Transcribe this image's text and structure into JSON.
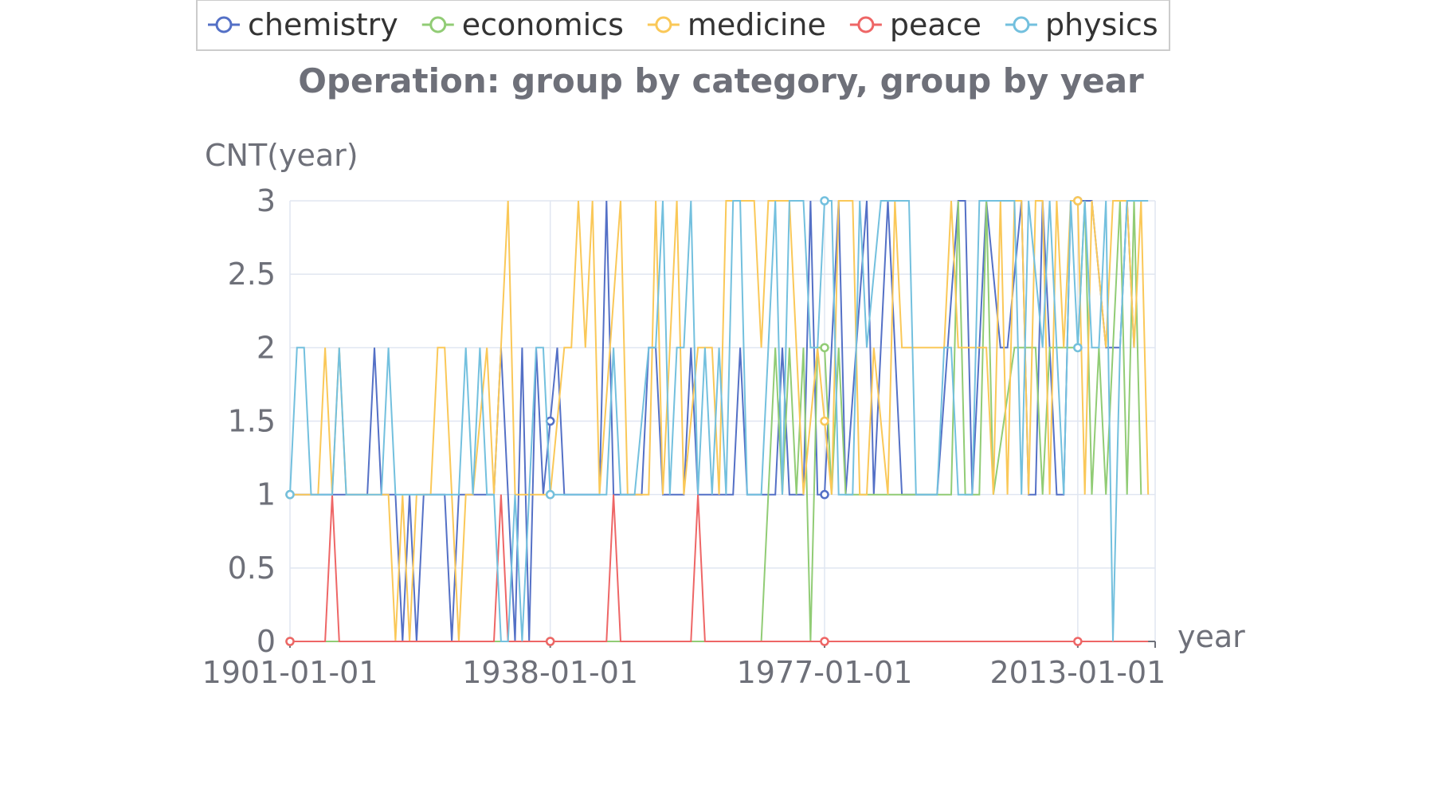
{
  "chart_data": {
    "type": "line",
    "title": "Operation: group by category, group by year",
    "xlabel": "year",
    "ylabel": "CNT(year)",
    "x_ticks": [
      "1901-01-01",
      "1938-01-01",
      "1977-01-01",
      "2013-01-01"
    ],
    "x_range": [
      1901,
      2024
    ],
    "ylim": [
      0,
      3
    ],
    "y_ticks": [
      "0",
      "0.5",
      "1",
      "1.5",
      "2",
      "2.5",
      "3"
    ],
    "grid": true,
    "legend_position": "top-center",
    "colors": {
      "chemistry": "#5470c6",
      "economics": "#91cc75",
      "medicine": "#fac858",
      "peace": "#ee6666",
      "physics": "#73c0de"
    },
    "series": [
      {
        "name": "chemistry",
        "color": "#5470c6",
        "points": [
          [
            1901,
            1
          ],
          [
            1910,
            1
          ],
          [
            1912,
            1
          ],
          [
            1913,
            2
          ],
          [
            1914,
            1
          ],
          [
            1916,
            1
          ],
          [
            1917,
            0
          ],
          [
            1918,
            1
          ],
          [
            1919,
            0
          ],
          [
            1920,
            1
          ],
          [
            1923,
            1
          ],
          [
            1924,
            0
          ],
          [
            1925,
            1
          ],
          [
            1930,
            1
          ],
          [
            1931,
            2
          ],
          [
            1932,
            1
          ],
          [
            1933,
            0
          ],
          [
            1934,
            2
          ],
          [
            1935,
            0
          ],
          [
            1936,
            2
          ],
          [
            1937,
            1
          ],
          [
            1939,
            2
          ],
          [
            1940,
            1
          ],
          [
            1945,
            1
          ],
          [
            1946,
            3
          ],
          [
            1947,
            1
          ],
          [
            1951,
            1
          ],
          [
            1952,
            2
          ],
          [
            1953,
            2
          ],
          [
            1954,
            1
          ],
          [
            1957,
            1
          ],
          [
            1958,
            2
          ],
          [
            1959,
            1
          ],
          [
            1962,
            1
          ],
          [
            1963,
            1
          ],
          [
            1964,
            1
          ],
          [
            1965,
            2
          ],
          [
            1966,
            1
          ],
          [
            1968,
            1
          ],
          [
            1969,
            1
          ],
          [
            1970,
            1
          ],
          [
            1971,
            2
          ],
          [
            1972,
            1
          ],
          [
            1974,
            1
          ],
          [
            1975,
            3
          ],
          [
            1976,
            1
          ],
          [
            1977,
            1
          ],
          [
            1979,
            3
          ],
          [
            1980,
            1
          ],
          [
            1983,
            3
          ],
          [
            1984,
            1
          ],
          [
            1986,
            3
          ],
          [
            1988,
            1
          ],
          [
            1992,
            1
          ],
          [
            1993,
            1
          ],
          [
            1996,
            3
          ],
          [
            1997,
            3
          ],
          [
            1998,
            1
          ],
          [
            1999,
            2
          ],
          [
            2000,
            3
          ],
          [
            2002,
            2
          ],
          [
            2003,
            2
          ],
          [
            2005,
            3
          ],
          [
            2006,
            1
          ],
          [
            2007,
            1
          ],
          [
            2008,
            3
          ],
          [
            2010,
            1
          ],
          [
            2011,
            1
          ],
          [
            2012,
            3
          ],
          [
            2013,
            3
          ],
          [
            2015,
            3
          ],
          [
            2017,
            2
          ],
          [
            2019,
            2
          ],
          [
            2020,
            3
          ],
          [
            2021,
            2
          ]
        ]
      },
      {
        "name": "economics",
        "color": "#91cc75",
        "points": [
          [
            1901,
            0
          ],
          [
            1968,
            0
          ],
          [
            1969,
            1
          ],
          [
            1970,
            2
          ],
          [
            1971,
            1
          ],
          [
            1972,
            2
          ],
          [
            1973,
            1
          ],
          [
            1974,
            2
          ],
          [
            1975,
            0
          ],
          [
            1976,
            2
          ],
          [
            1977,
            2
          ],
          [
            1978,
            1
          ],
          [
            1979,
            2
          ],
          [
            1980,
            1
          ],
          [
            1984,
            1
          ],
          [
            1986,
            1
          ],
          [
            1988,
            1
          ],
          [
            1990,
            1
          ],
          [
            1995,
            1
          ],
          [
            1996,
            3
          ],
          [
            1997,
            1
          ],
          [
            1999,
            1
          ],
          [
            2000,
            3
          ],
          [
            2001,
            1
          ],
          [
            2004,
            2
          ],
          [
            2007,
            2
          ],
          [
            2008,
            1
          ],
          [
            2009,
            2
          ],
          [
            2010,
            2
          ],
          [
            2011,
            2
          ],
          [
            2013,
            2
          ],
          [
            2014,
            3
          ],
          [
            2015,
            1
          ],
          [
            2016,
            2
          ],
          [
            2017,
            1
          ],
          [
            2019,
            3
          ],
          [
            2020,
            1
          ],
          [
            2021,
            3
          ],
          [
            2022,
            1
          ]
        ]
      },
      {
        "name": "medicine",
        "color": "#fac858",
        "points": [
          [
            1901,
            1
          ],
          [
            1905,
            1
          ],
          [
            1906,
            2
          ],
          [
            1907,
            1
          ],
          [
            1908,
            2
          ],
          [
            1909,
            1
          ],
          [
            1911,
            1
          ],
          [
            1915,
            1
          ],
          [
            1916,
            0
          ],
          [
            1917,
            1
          ],
          [
            1918,
            0
          ],
          [
            1919,
            1
          ],
          [
            1921,
            1
          ],
          [
            1922,
            2
          ],
          [
            1923,
            2
          ],
          [
            1924,
            1
          ],
          [
            1925,
            0
          ],
          [
            1926,
            1
          ],
          [
            1927,
            1
          ],
          [
            1929,
            2
          ],
          [
            1930,
            1
          ],
          [
            1932,
            3
          ],
          [
            1933,
            1
          ],
          [
            1936,
            1
          ],
          [
            1938,
            1
          ],
          [
            1940,
            2
          ],
          [
            1941,
            2
          ],
          [
            1942,
            3
          ],
          [
            1943,
            2
          ],
          [
            1944,
            3
          ],
          [
            1945,
            1
          ],
          [
            1948,
            3
          ],
          [
            1949,
            1
          ],
          [
            1952,
            1
          ],
          [
            1953,
            3
          ],
          [
            1954,
            1
          ],
          [
            1956,
            3
          ],
          [
            1957,
            1
          ],
          [
            1959,
            2
          ],
          [
            1961,
            2
          ],
          [
            1962,
            1
          ],
          [
            1963,
            3
          ],
          [
            1964,
            3
          ],
          [
            1966,
            3
          ],
          [
            1967,
            3
          ],
          [
            1968,
            2
          ],
          [
            1969,
            3
          ],
          [
            1972,
            3
          ],
          [
            1973,
            2
          ],
          [
            1974,
            1
          ],
          [
            1976,
            2
          ],
          [
            1978,
            1
          ],
          [
            1979,
            3
          ],
          [
            1981,
            3
          ],
          [
            1982,
            1
          ],
          [
            1983,
            1
          ],
          [
            1984,
            2
          ],
          [
            1986,
            1
          ],
          [
            1987,
            3
          ],
          [
            1988,
            2
          ],
          [
            1991,
            2
          ],
          [
            1994,
            2
          ],
          [
            1995,
            3
          ],
          [
            1996,
            2
          ],
          [
            1999,
            2
          ],
          [
            2000,
            2
          ],
          [
            2001,
            1
          ],
          [
            2002,
            3
          ],
          [
            2003,
            1
          ],
          [
            2004,
            3
          ],
          [
            2005,
            3
          ],
          [
            2006,
            1
          ],
          [
            2007,
            3
          ],
          [
            2008,
            3
          ],
          [
            2009,
            1
          ],
          [
            2010,
            3
          ],
          [
            2011,
            2
          ],
          [
            2012,
            3
          ],
          [
            2013,
            3
          ],
          [
            2014,
            1
          ],
          [
            2015,
            3
          ],
          [
            2017,
            2
          ],
          [
            2018,
            3
          ],
          [
            2020,
            3
          ],
          [
            2021,
            2
          ],
          [
            2022,
            3
          ],
          [
            2023,
            1
          ]
        ]
      },
      {
        "name": "peace",
        "color": "#ee6666",
        "points": [
          [
            1901,
            0
          ],
          [
            1906,
            0
          ],
          [
            1907,
            1
          ],
          [
            1908,
            0
          ],
          [
            1930,
            0
          ],
          [
            1931,
            1
          ],
          [
            1932,
            0
          ],
          [
            1946,
            0
          ],
          [
            1947,
            1
          ],
          [
            1948,
            0
          ],
          [
            1958,
            0
          ],
          [
            1959,
            1
          ],
          [
            1960,
            0
          ],
          [
            2023,
            0
          ]
        ]
      },
      {
        "name": "physics",
        "color": "#73c0de",
        "points": [
          [
            1901,
            1
          ],
          [
            1902,
            2
          ],
          [
            1903,
            2
          ],
          [
            1904,
            1
          ],
          [
            1907,
            1
          ],
          [
            1908,
            2
          ],
          [
            1909,
            1
          ],
          [
            1914,
            1
          ],
          [
            1915,
            2
          ],
          [
            1916,
            1
          ],
          [
            1918,
            1
          ],
          [
            1925,
            1
          ],
          [
            1926,
            2
          ],
          [
            1927,
            1
          ],
          [
            1928,
            2
          ],
          [
            1929,
            1
          ],
          [
            1930,
            1
          ],
          [
            1931,
            0
          ],
          [
            1932,
            0
          ],
          [
            1933,
            1
          ],
          [
            1934,
            0
          ],
          [
            1935,
            1
          ],
          [
            1936,
            2
          ],
          [
            1937,
            2
          ],
          [
            1938,
            1
          ],
          [
            1940,
            1
          ],
          [
            1946,
            1
          ],
          [
            1947,
            2
          ],
          [
            1948,
            1
          ],
          [
            1950,
            1
          ],
          [
            1952,
            2
          ],
          [
            1953,
            2
          ],
          [
            1954,
            3
          ],
          [
            1955,
            1
          ],
          [
            1956,
            2
          ],
          [
            1957,
            2
          ],
          [
            1958,
            3
          ],
          [
            1959,
            1
          ],
          [
            1960,
            2
          ],
          [
            1961,
            1
          ],
          [
            1962,
            2
          ],
          [
            1963,
            1
          ],
          [
            1964,
            3
          ],
          [
            1965,
            3
          ],
          [
            1966,
            1
          ],
          [
            1968,
            1
          ],
          [
            1969,
            2
          ],
          [
            1970,
            3
          ],
          [
            1971,
            1
          ],
          [
            1972,
            3
          ],
          [
            1974,
            3
          ],
          [
            1975,
            2
          ],
          [
            1976,
            2
          ],
          [
            1977,
            3
          ],
          [
            1978,
            3
          ],
          [
            1979,
            1
          ],
          [
            1981,
            1
          ],
          [
            1982,
            3
          ],
          [
            1983,
            2
          ],
          [
            1985,
            3
          ],
          [
            1989,
            3
          ],
          [
            1990,
            1
          ],
          [
            1993,
            1
          ],
          [
            1994,
            2
          ],
          [
            1995,
            2
          ],
          [
            1996,
            1
          ],
          [
            1998,
            1
          ],
          [
            1999,
            3
          ],
          [
            2004,
            3
          ],
          [
            2005,
            1
          ],
          [
            2006,
            3
          ],
          [
            2008,
            2
          ],
          [
            2009,
            3
          ],
          [
            2010,
            2
          ],
          [
            2011,
            1
          ],
          [
            2012,
            3
          ],
          [
            2013,
            2
          ],
          [
            2014,
            3
          ],
          [
            2015,
            2
          ],
          [
            2016,
            2
          ],
          [
            2017,
            3
          ],
          [
            2018,
            0
          ],
          [
            2019,
            2
          ],
          [
            2020,
            3
          ],
          [
            2022,
            3
          ],
          [
            2023,
            3
          ]
        ]
      }
    ]
  }
}
